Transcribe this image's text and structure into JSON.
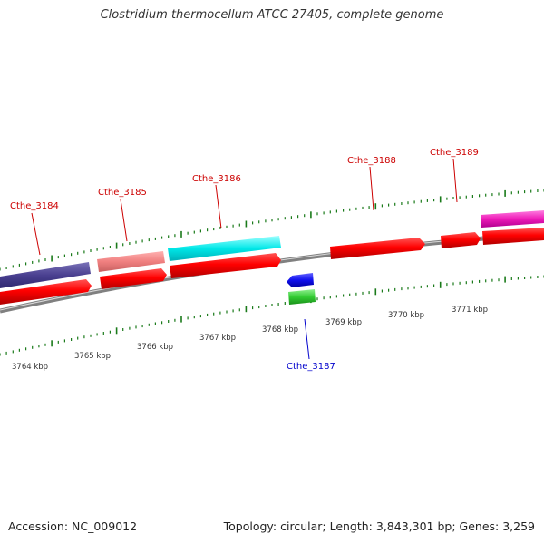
{
  "title": "Clostridium thermocellum ATCC 27405, complete genome",
  "footer": {
    "accession": "Accession: NC_009012",
    "summary": "Topology: circular; Length: 3,843,301 bp; Genes: 3,259"
  },
  "colors": {
    "backbone": "#808080",
    "tick": "#1a7a1a",
    "forward_label": "#cc0000",
    "reverse_label": "#0000cc"
  },
  "scale_labels": [
    "3764 kbp",
    "3765 kbp",
    "3766 kbp",
    "3767 kbp",
    "3768 kbp",
    "3769 kbp",
    "3770 kbp",
    "3771 kbp"
  ],
  "genes": [
    {
      "name": "Cthe_3184",
      "strand": "+",
      "color": "#cc0000"
    },
    {
      "name": "Cthe_3185",
      "strand": "+",
      "color": "#cc0000"
    },
    {
      "name": "Cthe_3186",
      "strand": "+",
      "color": "#cc0000"
    },
    {
      "name": "Cthe_3187",
      "strand": "-",
      "color": "#0000cc"
    },
    {
      "name": "Cthe_3188",
      "strand": "+",
      "color": "#cc0000"
    },
    {
      "name": "Cthe_3189",
      "strand": "+",
      "color": "#cc0000"
    }
  ]
}
